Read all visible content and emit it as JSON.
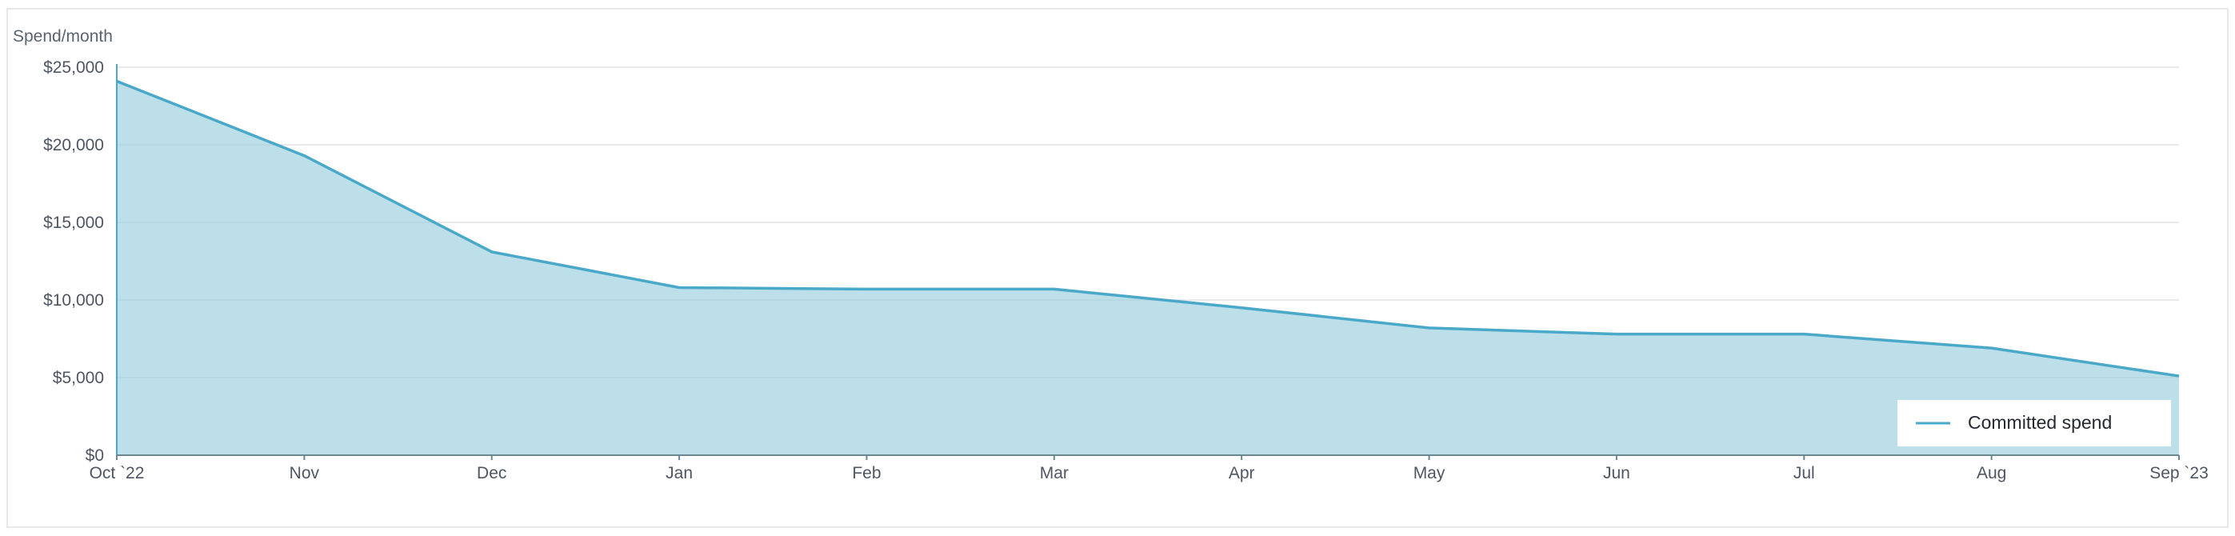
{
  "chart_data": {
    "type": "area",
    "ylabel": "Spend/month",
    "x": [
      "Oct `22",
      "Nov",
      "Dec",
      "Jan",
      "Feb",
      "Mar",
      "Apr",
      "May",
      "Jun",
      "Jul",
      "Aug",
      "Sep `23"
    ],
    "series": [
      {
        "name": "Committed spend",
        "values": [
          24100,
          19300,
          13100,
          10800,
          10700,
          10700,
          9500,
          8200,
          7800,
          7800,
          6900,
          5100
        ],
        "color": "#4aa8c8",
        "fill": "#bcdfea"
      }
    ],
    "ylim": [
      0,
      25000
    ],
    "yticks": [
      0,
      5000,
      10000,
      15000,
      20000,
      25000
    ],
    "ytick_labels": [
      "$0",
      "$5,000",
      "$10,000",
      "$15,000",
      "$20,000",
      "$25,000"
    ],
    "grid": true,
    "legend_position": "bottom-right"
  }
}
